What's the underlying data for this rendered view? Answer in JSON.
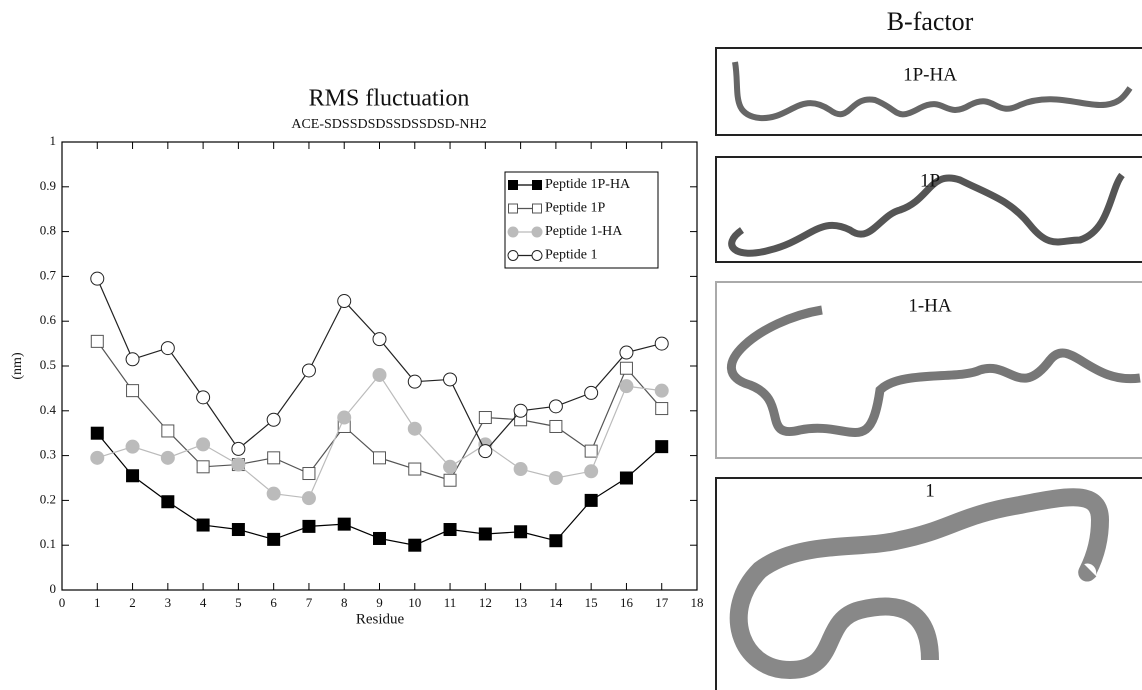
{
  "chart_data": {
    "type": "line",
    "title": "RMS fluctuation",
    "subtitle": "ACE-SDSSDSDSSDSSDSD-NH2",
    "x_label": "Residue",
    "y_label": "(nm)",
    "x": [
      1,
      2,
      3,
      4,
      5,
      6,
      7,
      8,
      9,
      10,
      11,
      12,
      13,
      14,
      15,
      16,
      17
    ],
    "xlim": [
      0,
      18
    ],
    "xticks": [
      0,
      1,
      2,
      3,
      4,
      5,
      6,
      7,
      8,
      9,
      10,
      11,
      12,
      13,
      14,
      15,
      16,
      17,
      18
    ],
    "ylim": [
      0,
      1
    ],
    "yticks": [
      0,
      0.1,
      0.2,
      0.3,
      0.4,
      0.5,
      0.6,
      0.7,
      0.8,
      0.9,
      1
    ],
    "legend": "upper right",
    "series": [
      {
        "name": "Peptide 1P-HA",
        "color": "#000000",
        "marker": "square",
        "filled": true,
        "values": [
          0.35,
          0.255,
          0.197,
          0.145,
          0.135,
          0.113,
          0.142,
          0.147,
          0.115,
          0.1,
          0.135,
          0.125,
          0.13,
          0.11,
          0.2,
          0.25,
          0.32
        ]
      },
      {
        "name": "Peptide 1P",
        "color": "#555555",
        "marker": "square",
        "filled": false,
        "values": [
          0.555,
          0.445,
          0.355,
          0.275,
          0.28,
          0.295,
          0.26,
          0.365,
          0.295,
          0.27,
          0.245,
          0.385,
          0.38,
          0.365,
          0.31,
          0.495,
          0.405
        ]
      },
      {
        "name": "Peptide 1-HA",
        "color": "#bbbbbb",
        "marker": "circle",
        "filled": true,
        "values": [
          0.295,
          0.32,
          0.295,
          0.325,
          0.28,
          0.215,
          0.205,
          0.385,
          0.48,
          0.36,
          0.275,
          0.325,
          0.27,
          0.25,
          0.265,
          0.455,
          0.445
        ]
      },
      {
        "name": "Peptide 1",
        "color": "#222222",
        "marker": "circle",
        "filled": false,
        "values": [
          0.695,
          0.515,
          0.54,
          0.43,
          0.315,
          0.38,
          0.49,
          0.645,
          0.56,
          0.465,
          0.47,
          0.31,
          0.4,
          0.41,
          0.44,
          0.53,
          0.55
        ]
      }
    ]
  },
  "panels": {
    "title": "B-factor",
    "labels": [
      "1P-HA",
      "1P",
      "1-HA",
      "1"
    ]
  }
}
